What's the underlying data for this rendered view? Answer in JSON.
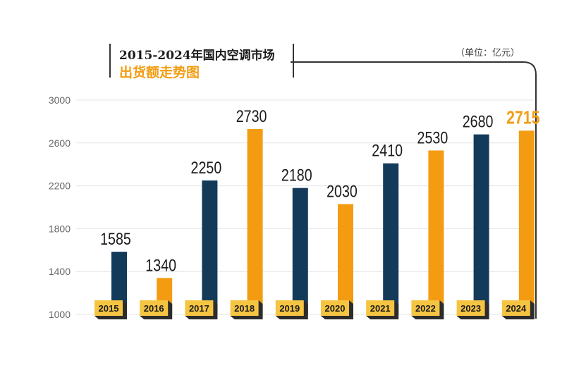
{
  "title": {
    "line1": "2015-2024年国内空调市场",
    "line2": "出货额走势图"
  },
  "unit_label": "（单位：亿元）",
  "colors": {
    "navy": "#143a5a",
    "orange": "#f39c12",
    "gold": "#f5c542"
  },
  "chart_data": {
    "type": "bar",
    "title": "2015-2024年国内空调市场出货额走势图",
    "categories": [
      "2015",
      "2016",
      "2017",
      "2018",
      "2019",
      "2020",
      "2021",
      "2022",
      "2023",
      "2024"
    ],
    "values": [
      1585,
      1340,
      2250,
      2730,
      2180,
      2030,
      2410,
      2530,
      2680,
      2715
    ],
    "bar_colors": [
      "navy",
      "orange",
      "navy",
      "orange",
      "navy",
      "orange",
      "navy",
      "orange",
      "navy",
      "orange"
    ],
    "ylim": [
      1000,
      3000
    ],
    "yticks": [
      1000,
      1400,
      1800,
      2200,
      2600,
      3000
    ],
    "xlabel": "",
    "ylabel": "",
    "grid": true
  }
}
